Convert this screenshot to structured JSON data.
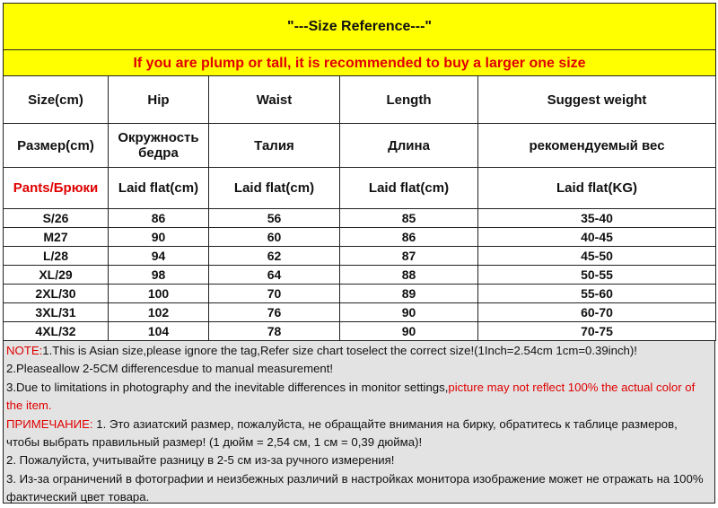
{
  "title": "\"---Size Reference---\"",
  "subtitle": "If you are plump or tall, it is recommended to buy a larger one size",
  "headers": [
    "Size(cm)",
    "Hip",
    "Waist",
    "Length",
    "Suggest weight"
  ],
  "headers_ru": [
    "Размер(cm)",
    "Окружность бедра",
    "Талия",
    "Длина",
    "рекомендуемый вес"
  ],
  "units": [
    "Pants/Брюки",
    "Laid flat(cm)",
    "Laid flat(cm)",
    "Laid flat(cm)",
    "Laid flat(KG)"
  ],
  "rows": [
    [
      "S/26",
      "86",
      "56",
      "85",
      "35-40"
    ],
    [
      "M27",
      "90",
      "60",
      "86",
      "40-45"
    ],
    [
      "L/28",
      "94",
      "62",
      "87",
      "45-50"
    ],
    [
      "XL/29",
      "98",
      "64",
      "88",
      "50-55"
    ],
    [
      "2XL/30",
      "100",
      "70",
      "89",
      "55-60"
    ],
    [
      "3XL/31",
      "102",
      "76",
      "90",
      "60-70"
    ],
    [
      "4XL/32",
      "104",
      "78",
      "90",
      "70-75"
    ]
  ],
  "notes": {
    "n1_label": "NOTE:",
    "n1": "1.This is Asian size,please ignore the tag,Refer size chart toselect the correct size!(1Inch=2.54cm 1cm=0.39inch)!",
    "n2": "2.Pleaseallow 2-5CM differencesdue to manual measurement!",
    "n3": "3.Due to limitations in photography and the inevitable differences in monitor settings,",
    "n3_red": "picture may not reflect 100% the actual color of the item.",
    "ru1_label": "ПРИМЕЧАНИЕ:",
    "ru1": " 1. Это азиатский размер, пожалуйста, не обращайте внимания на бирку, обратитесь к таблице размеров, чтобы выбрать правильный размер! (1 дюйм = 2,54 см, 1 см = 0,39 дюйма)!",
    "ru2": "2. Пожалуйста, учитывайте разницу в 2-5 см из-за ручного измерения!",
    "ru3": "3. Из-за ограничений в фотографии и неизбежных различий в настройках монитора изображение может не отражать на 100% фактический цвет товара."
  },
  "colors": {
    "header_bg": "#ffff00",
    "accent_red": "#e00000",
    "notes_bg": "#e3e3e3"
  }
}
